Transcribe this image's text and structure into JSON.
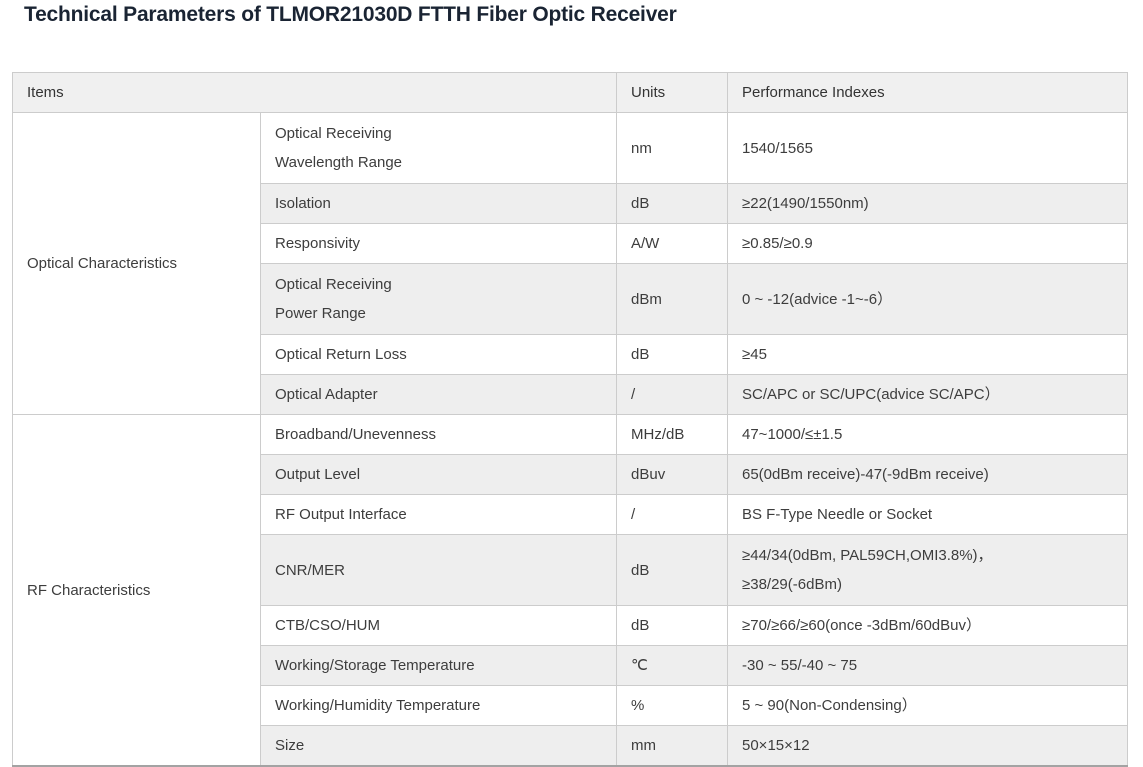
{
  "title": "Technical Parameters of TLMOR21030D FTTH Fiber Optic Receiver",
  "colors": {
    "title_text": "#1a2433",
    "body_text": "#3d3d3d",
    "header_background": "#f0f0f0",
    "shaded_row_background": "#eeeeee",
    "border": "#cccccc"
  },
  "table": {
    "header": {
      "items": "Items",
      "units": "Units",
      "performance": "Performance Indexes"
    },
    "groups": [
      {
        "category": "Optical Characteristics",
        "rows": [
          {
            "item": "Optical Receiving\nWavelength Range",
            "unit": "nm",
            "value": "1540/1565"
          },
          {
            "item": "Isolation",
            "unit": "dB",
            "value": "≥22(1490/1550nm)"
          },
          {
            "item": "Responsivity",
            "unit": "A/W",
            "value": "≥0.85/≥0.9"
          },
          {
            "item": "Optical Receiving\nPower Range",
            "unit": "dBm",
            "value": "0 ~ -12(advice -1~-6）"
          },
          {
            "item": "Optical Return Loss",
            "unit": "dB",
            "value": "≥45"
          },
          {
            "item": "Optical Adapter",
            "unit": "/",
            "value": "SC/APC or SC/UPC(advice SC/APC）"
          }
        ]
      },
      {
        "category": "RF Characteristics",
        "rows": [
          {
            "item": "Broadband/Unevenness",
            "unit": "MHz/dB",
            "value": "47~1000/≤±1.5"
          },
          {
            "item": "Output Level",
            "unit": "dBuv",
            "value": "65(0dBm receive)-47(-9dBm receive)"
          },
          {
            "item": "RF Output Interface",
            "unit": "/",
            "value": "BS F-Type Needle or Socket"
          },
          {
            "item": "CNR/MER",
            "unit": "dB",
            "value": "≥44/34(0dBm, PAL59CH,OMI3.8%)，\n≥38/29(-6dBm)"
          },
          {
            "item": "CTB/CSO/HUM",
            "unit": "dB",
            "value": "≥70/≥66/≥60(once -3dBm/60dBuv）"
          },
          {
            "item": "Working/Storage Temperature",
            "unit": "℃",
            "value": "-30 ~ 55/-40 ~ 75"
          },
          {
            "item": "Working/Humidity Temperature",
            "unit": "%",
            "value": "5 ~ 90(Non-Condensing）"
          },
          {
            "item": "Size",
            "unit": "mm",
            "value": "50×15×12"
          }
        ]
      }
    ]
  }
}
